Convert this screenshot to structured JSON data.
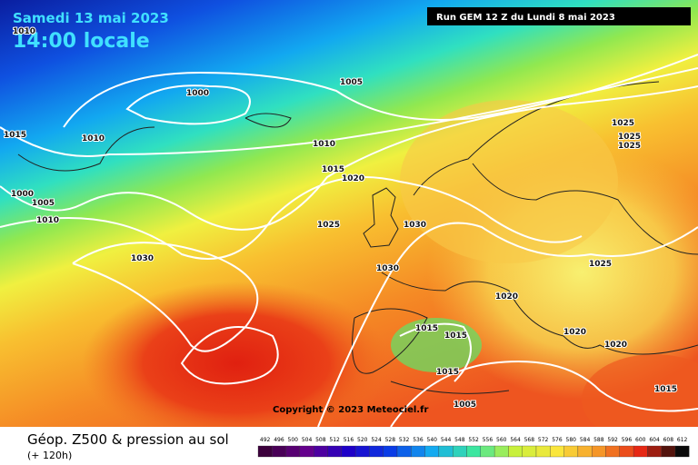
{
  "header": {
    "date": "Samedi 13 mai 2023",
    "time": "14:00 locale",
    "run": "Run GEM 12 Z du Lundi 8 mai 2023"
  },
  "copyright": "Copyright © 2023 Meteociel.fr",
  "footer": {
    "title": "Géop. Z500 & pression au sol",
    "lead": "(+ 120h)"
  },
  "legend": {
    "labels": [
      "492",
      "496",
      "500",
      "504",
      "508",
      "512",
      "516",
      "520",
      "524",
      "528",
      "532",
      "536",
      "540",
      "544",
      "548",
      "552",
      "556",
      "560",
      "564",
      "568",
      "572",
      "576",
      "580",
      "584",
      "588",
      "592",
      "596",
      "600",
      "604",
      "608",
      "612"
    ]
  },
  "isobars": [
    "1010",
    "1000",
    "1005",
    "1015",
    "1010",
    "1010",
    "1015",
    "1020",
    "1000",
    "1005",
    "1010",
    "1025",
    "1030",
    "1030",
    "1030",
    "1020",
    "1015",
    "1015",
    "1015",
    "1005",
    "1025",
    "1025",
    "1025",
    "1020",
    "1020",
    "1015",
    "1025"
  ]
}
